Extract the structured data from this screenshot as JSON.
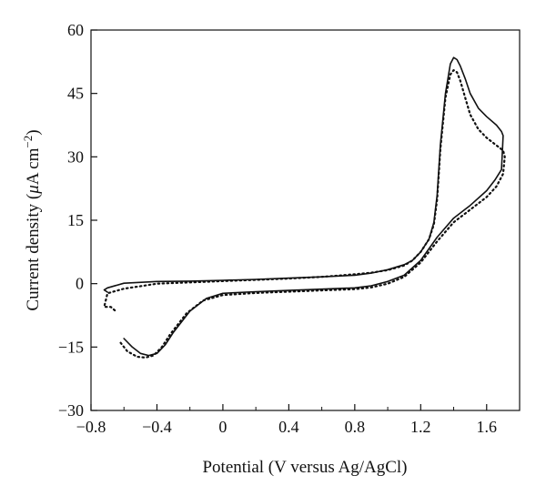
{
  "chart_data": {
    "type": "line",
    "title": "",
    "xlabel": "Potential (V versus Ag/AgCl)",
    "ylabel_parts": {
      "prefix": "Current density (",
      "mu": "μ",
      "unit": "A cm",
      "exponent": "−2",
      "suffix": ")"
    },
    "xlim": [
      -0.8,
      1.8
    ],
    "ylim": [
      -30,
      60
    ],
    "xticks": [
      {
        "value": -0.8,
        "label": "−0.8"
      },
      {
        "value": -0.4,
        "label": "−0.4"
      },
      {
        "value": 0,
        "label": "0"
      },
      {
        "value": 0.4,
        "label": "0.4"
      },
      {
        "value": 0.8,
        "label": "0.8"
      },
      {
        "value": 1.2,
        "label": "1.2"
      },
      {
        "value": 1.6,
        "label": "1.6"
      }
    ],
    "yticks": [
      {
        "value": -30,
        "label": "−30"
      },
      {
        "value": -15,
        "label": "−15"
      },
      {
        "value": 0,
        "label": "0"
      },
      {
        "value": 15,
        "label": "15"
      },
      {
        "value": 30,
        "label": "30"
      },
      {
        "value": 45,
        "label": "45"
      },
      {
        "value": 60,
        "label": "60"
      }
    ],
    "grid": false,
    "legend": "none",
    "series": [
      {
        "style": "solid",
        "color": "#111111",
        "x": [
          -0.6,
          -0.55,
          -0.5,
          -0.45,
          -0.4,
          -0.35,
          -0.3,
          -0.2,
          -0.1,
          0.0,
          0.2,
          0.4,
          0.6,
          0.8,
          0.9,
          1.0,
          1.1,
          1.2,
          1.3,
          1.4,
          1.5,
          1.6,
          1.65,
          1.69,
          1.7,
          1.69,
          1.66,
          1.6,
          1.55,
          1.5,
          1.47,
          1.44,
          1.42,
          1.4,
          1.38,
          1.35,
          1.32,
          1.3,
          1.28,
          1.25,
          1.2,
          1.15,
          1.1,
          1.0,
          0.9,
          0.8,
          0.6,
          0.4,
          0.2,
          0.0,
          -0.2,
          -0.4,
          -0.6,
          -0.7,
          -0.72,
          -0.7
        ],
        "y": [
          -13,
          -15,
          -16.5,
          -17,
          -16.5,
          -14.5,
          -11.5,
          -6.5,
          -3.5,
          -2.3,
          -1.9,
          -1.6,
          -1.3,
          -1.0,
          -0.5,
          0.5,
          2.0,
          5.5,
          11.0,
          15.5,
          18.5,
          22.0,
          24.5,
          27.0,
          35.0,
          36.0,
          37.5,
          39.5,
          41.5,
          45.0,
          48.5,
          51.5,
          53.0,
          53.5,
          52.0,
          45.0,
          33.0,
          21.0,
          14.5,
          10.5,
          7.5,
          5.5,
          4.5,
          3.3,
          2.5,
          2.0,
          1.6,
          1.3,
          1.0,
          0.8,
          0.6,
          0.5,
          0.1,
          -1.0,
          -1.5,
          -2.0
        ]
      },
      {
        "style": "dotted",
        "color": "#111111",
        "x": [
          -0.62,
          -0.58,
          -0.52,
          -0.47,
          -0.42,
          -0.37,
          -0.32,
          -0.22,
          -0.12,
          0.0,
          0.2,
          0.4,
          0.6,
          0.8,
          0.9,
          1.0,
          1.1,
          1.2,
          1.3,
          1.4,
          1.5,
          1.6,
          1.66,
          1.7,
          1.71,
          1.7,
          1.65,
          1.6,
          1.55,
          1.5,
          1.47,
          1.44,
          1.42,
          1.4,
          1.38,
          1.35,
          1.32,
          1.3,
          1.28,
          1.25,
          1.2,
          1.15,
          1.1,
          1.0,
          0.9,
          0.8,
          0.6,
          0.4,
          0.2,
          0.0,
          -0.2,
          -0.4,
          -0.6,
          -0.7,
          -0.72,
          -0.68,
          -0.65
        ],
        "y": [
          -14,
          -16,
          -17.3,
          -17.5,
          -17.0,
          -15.0,
          -12.0,
          -7.0,
          -4.0,
          -2.7,
          -2.2,
          -1.9,
          -1.6,
          -1.3,
          -0.9,
          0.0,
          1.6,
          5.0,
          10.0,
          14.5,
          17.5,
          20.5,
          23.0,
          26.0,
          30.0,
          31.5,
          33.0,
          34.5,
          36.5,
          40.0,
          44.0,
          48.0,
          50.0,
          50.5,
          49.5,
          44.0,
          32.0,
          20.0,
          14.0,
          10.5,
          7.5,
          5.5,
          4.3,
          3.2,
          2.6,
          2.2,
          1.6,
          1.2,
          0.9,
          0.6,
          0.3,
          0.0,
          -1.2,
          -2.3,
          -5.5,
          -5.5,
          -6.5
        ]
      }
    ]
  }
}
